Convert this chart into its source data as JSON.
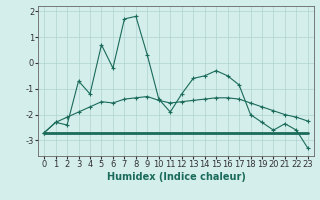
{
  "xlabel": "Humidex (Indice chaleur)",
  "x_values": [
    0,
    1,
    2,
    3,
    4,
    5,
    6,
    7,
    8,
    9,
    10,
    11,
    12,
    13,
    14,
    15,
    16,
    17,
    18,
    19,
    20,
    21,
    22,
    23
  ],
  "line1_y": [
    -2.7,
    -2.3,
    -2.4,
    -0.7,
    -1.2,
    0.7,
    -0.2,
    1.7,
    1.8,
    0.3,
    -1.4,
    -1.9,
    -1.2,
    -0.6,
    -0.5,
    -0.3,
    -0.5,
    -0.85,
    -2.0,
    -2.3,
    -2.6,
    -2.35,
    -2.6,
    -3.3
  ],
  "line2_y": [
    -2.7,
    -2.3,
    -2.1,
    -1.9,
    -1.7,
    -1.5,
    -1.55,
    -1.4,
    -1.35,
    -1.3,
    -1.45,
    -1.55,
    -1.5,
    -1.45,
    -1.4,
    -1.35,
    -1.35,
    -1.4,
    -1.55,
    -1.7,
    -1.85,
    -2.0,
    -2.1,
    -2.25
  ],
  "line3_y": [
    -2.7,
    -2.7,
    -2.7,
    -2.7,
    -2.7,
    -2.7,
    -2.7,
    -2.7,
    -2.7,
    -2.7,
    -2.7,
    -2.7,
    -2.7,
    -2.7,
    -2.7,
    -2.7,
    -2.7,
    -2.7,
    -2.7,
    -2.7,
    -2.7,
    -2.7,
    -2.7,
    -2.7
  ],
  "line_color": "#1a6b5a",
  "bg_color": "#d4eeec",
  "grid_color": "#b0d4d0",
  "ylim": [
    -3.6,
    2.2
  ],
  "yticks": [
    -3,
    -2,
    -1,
    0,
    1,
    2
  ],
  "tick_fontsize": 6,
  "label_fontsize": 7
}
